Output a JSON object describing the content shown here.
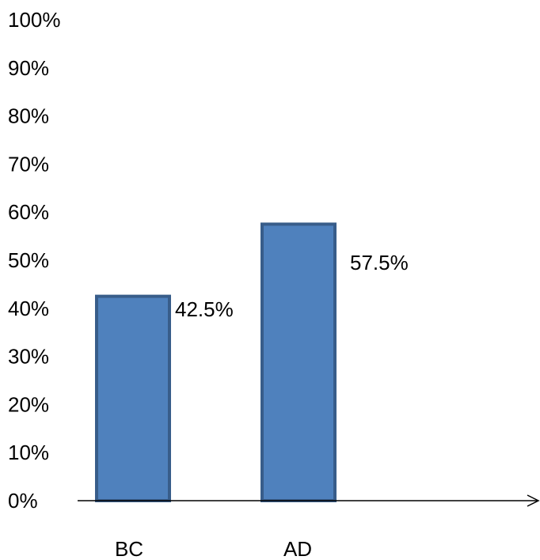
{
  "chart_data": {
    "type": "bar",
    "categories": [
      "BC",
      "AD"
    ],
    "values": [
      42.5,
      57.5
    ],
    "data_labels": [
      "42.5%",
      "57.5%"
    ],
    "y_ticks": [
      "0%",
      "10%",
      "20%",
      "30%",
      "40%",
      "50%",
      "60%",
      "70%",
      "80%",
      "90%",
      "100%"
    ],
    "ylim": [
      0,
      100
    ],
    "grid": false,
    "legend": false,
    "colors": {
      "bar_fill": "#4f81bd",
      "bar_stroke": "#385d8a",
      "axis": "#000000"
    }
  }
}
